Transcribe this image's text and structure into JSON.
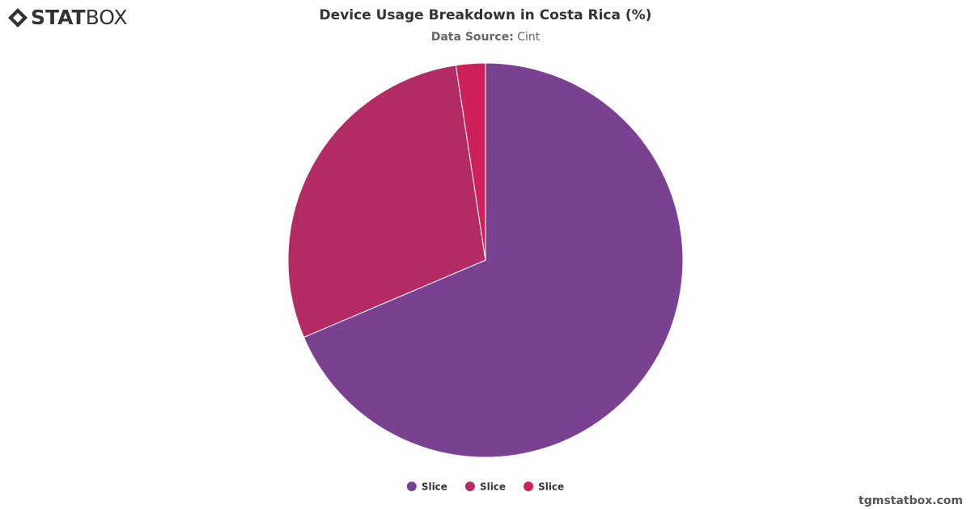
{
  "logo": {
    "bold": "STAT",
    "light": "BOX"
  },
  "watermark": "tgmstatbox.com",
  "chart_data": {
    "type": "pie",
    "title": "Device Usage Breakdown in Costa Rica (%)",
    "subtitle_label": "Data Source:",
    "subtitle": "Cint",
    "categories": [
      "Slice",
      "Slice",
      "Slice"
    ],
    "values": [
      68.6,
      29.0,
      2.4
    ],
    "colors": [
      "#7b4191",
      "#b32a65",
      "#cf2159"
    ],
    "legend": "bottom"
  }
}
